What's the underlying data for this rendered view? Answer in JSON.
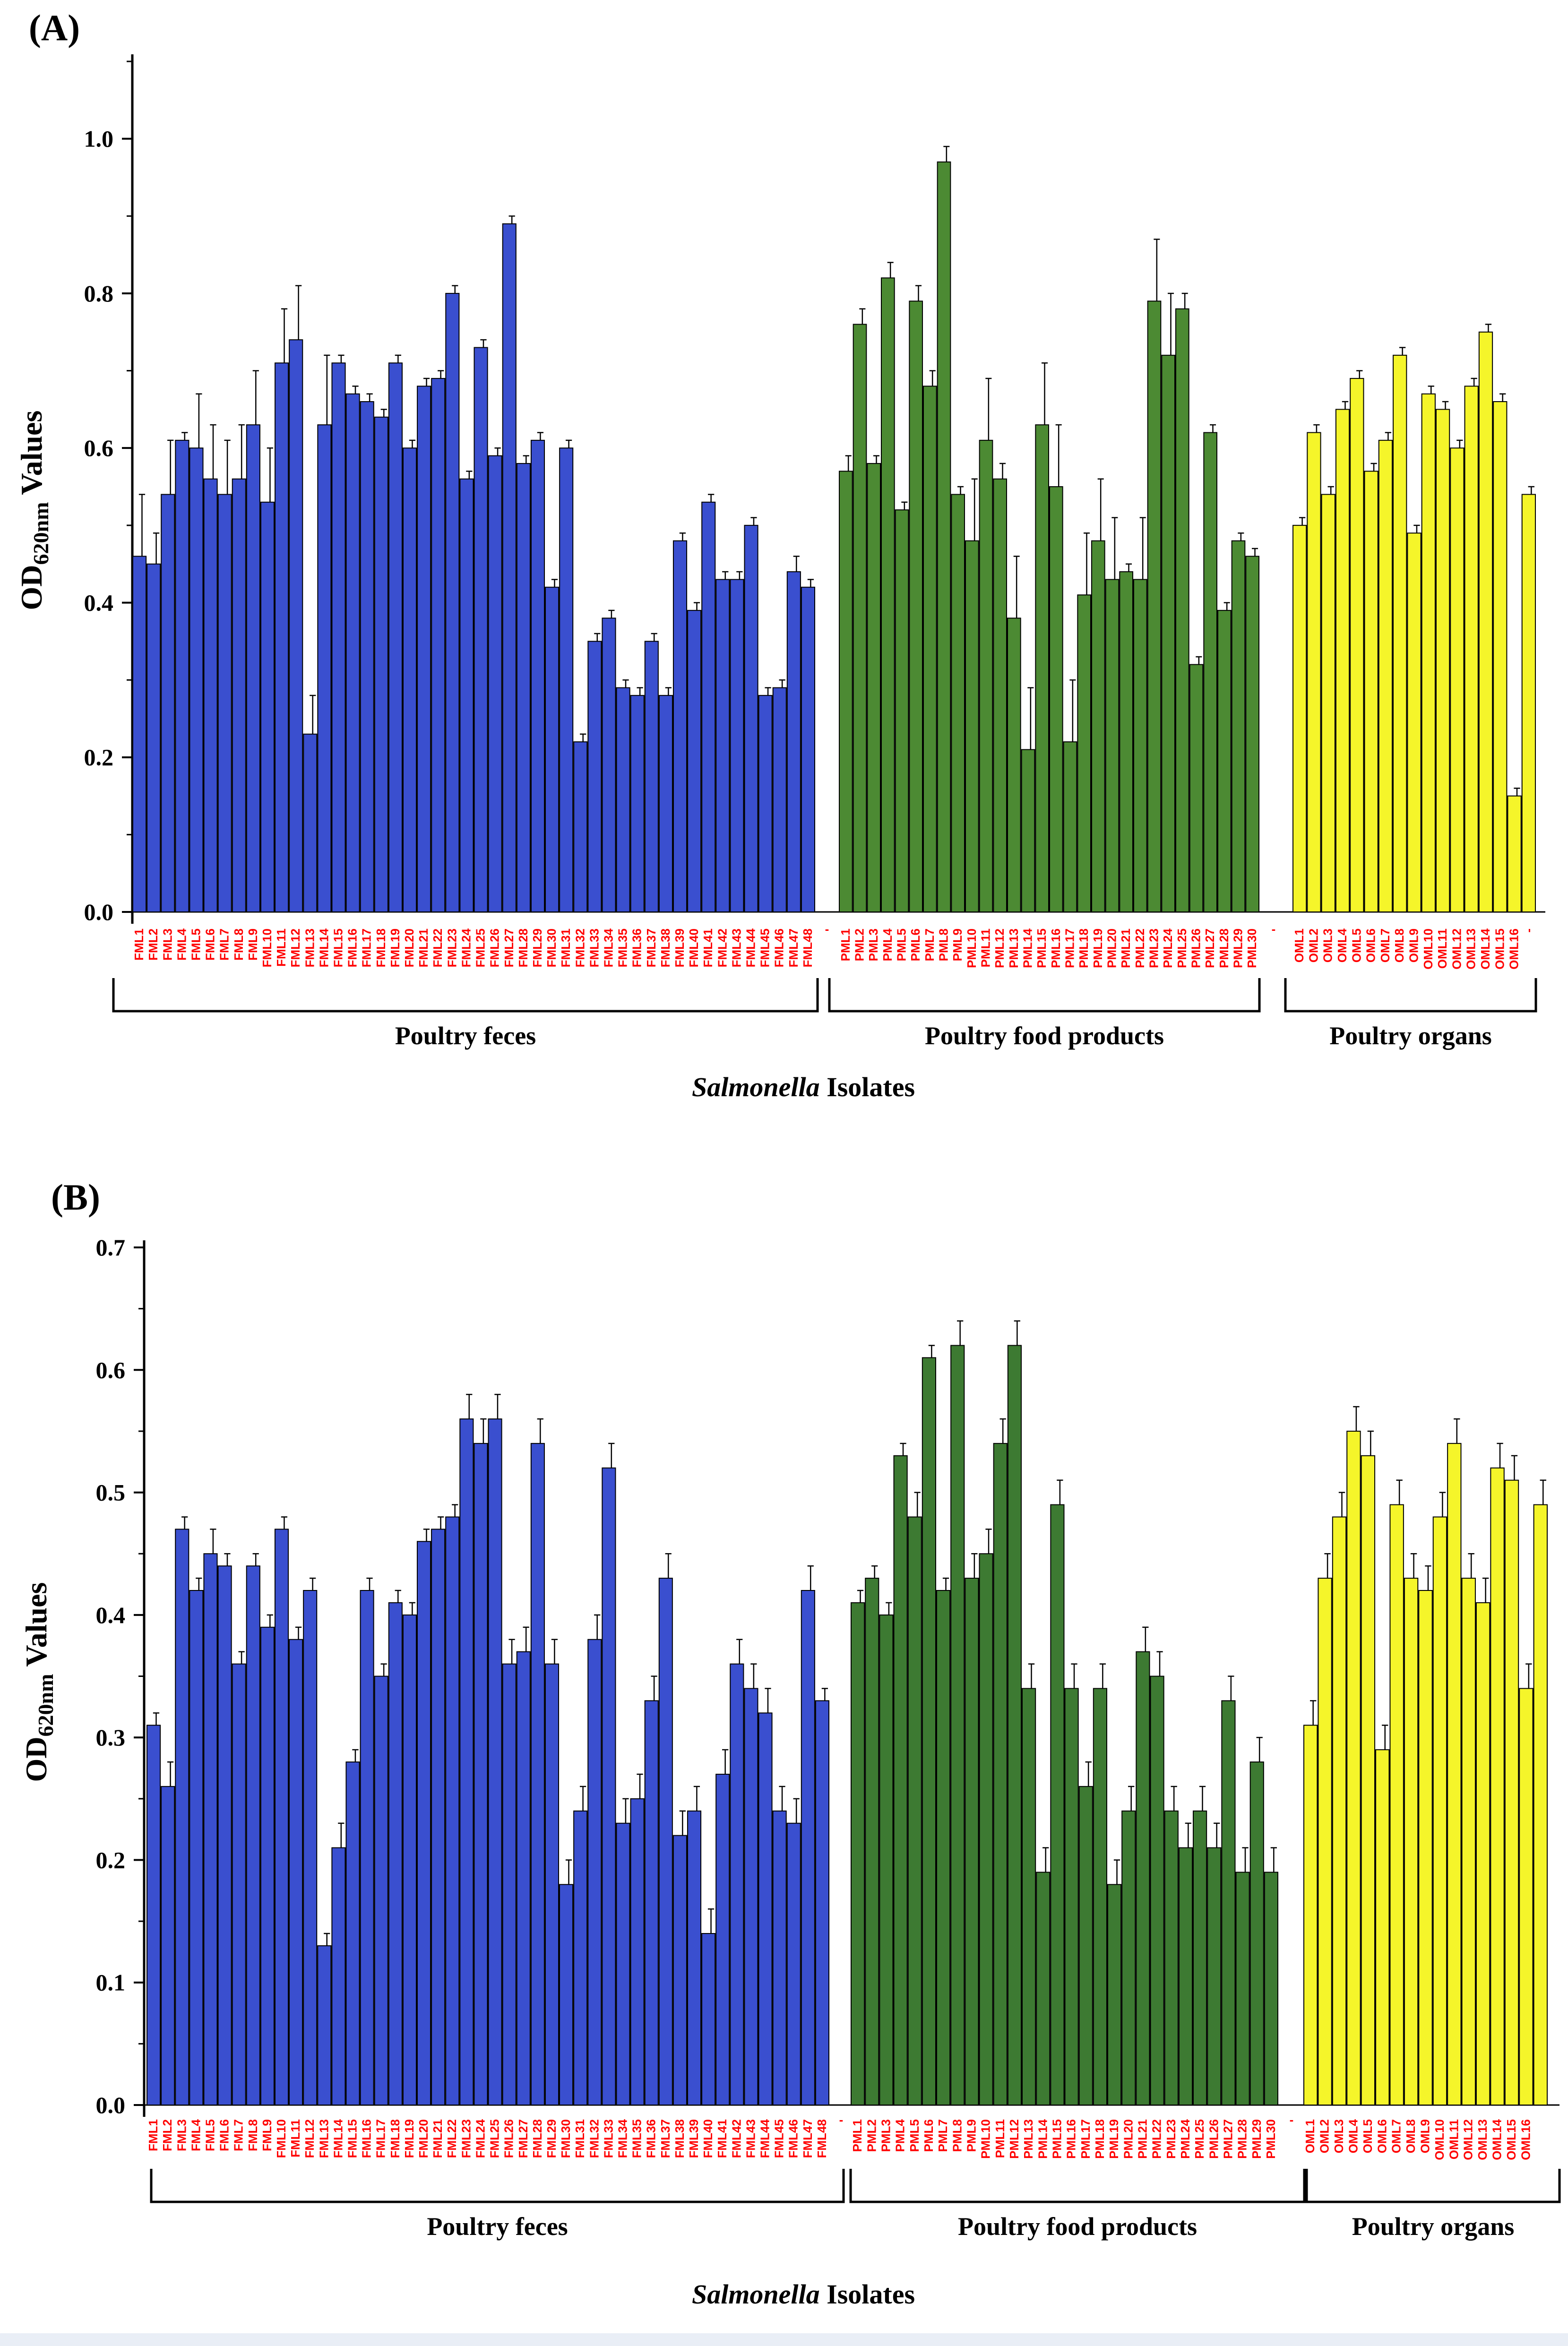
{
  "chart_data": [
    {
      "type": "bar",
      "panel_label": "(A)",
      "ylabel": {
        "main": "OD",
        "sub": "620nm",
        "suffix": " Values"
      },
      "xlabel": {
        "italic": "Salmonella",
        "rest": " Isolates"
      },
      "ylim": [
        0,
        1.1
      ],
      "yticks": [
        0.0,
        0.2,
        0.4,
        0.6,
        0.8,
        1.0
      ],
      "ytick_labels": [
        "0.0",
        "0.2",
        "0.4",
        "0.6",
        "0.8",
        "1.0"
      ],
      "separator_tick_label": "-",
      "groups": [
        {
          "name": "Poultry feces",
          "color": "#3a4fcf",
          "categories": [
            "FML1",
            "FML2",
            "FML3",
            "FML4",
            "FML5",
            "FML6",
            "FML7",
            "FML8",
            "FML9",
            "FML10",
            "FML11",
            "FML12",
            "FML13",
            "FML14",
            "FML15",
            "FML16",
            "FML17",
            "FML18",
            "FML19",
            "FML20",
            "FML21",
            "FML22",
            "FML23",
            "FML24",
            "FML25",
            "FML26",
            "FML27",
            "FML28",
            "FML29",
            "FML30",
            "FML31",
            "FML32",
            "FML33",
            "FML34",
            "FML35",
            "FML36",
            "FML37",
            "FML38",
            "FML39",
            "FML40",
            "FML41",
            "FML42",
            "FML43",
            "FML44",
            "FML45",
            "FML46",
            "FML47",
            "FML48"
          ],
          "values": [
            0.46,
            0.45,
            0.54,
            0.61,
            0.6,
            0.56,
            0.54,
            0.56,
            0.63,
            0.53,
            0.71,
            0.74,
            0.23,
            0.63,
            0.71,
            0.67,
            0.66,
            0.64,
            0.71,
            0.6,
            0.68,
            0.69,
            0.8,
            0.56,
            0.73,
            0.59,
            0.89,
            0.58,
            0.61,
            0.42,
            0.6,
            0.22,
            0.35,
            0.38,
            0.29,
            0.28,
            0.35,
            0.28,
            0.48,
            0.39,
            0.53,
            0.43,
            0.43,
            0.5,
            0.28,
            0.29,
            0.44,
            0.42
          ],
          "errors": [
            0.08,
            0.04,
            0.07,
            0.01,
            0.07,
            0.07,
            0.07,
            0.07,
            0.07,
            0.07,
            0.07,
            0.07,
            0.05,
            0.09,
            0.01,
            0.01,
            0.01,
            0.01,
            0.01,
            0.01,
            0.01,
            0.01,
            0.01,
            0.01,
            0.01,
            0.01,
            0.01,
            0.01,
            0.01,
            0.01,
            0.01,
            0.01,
            0.01,
            0.01,
            0.01,
            0.01,
            0.01,
            0.01,
            0.01,
            0.01,
            0.01,
            0.01,
            0.01,
            0.01,
            0.01,
            0.01,
            0.02,
            0.01
          ]
        },
        {
          "name": "Poultry food products",
          "color": "#4c8a33",
          "categories": [
            "PML1",
            "PML2",
            "PML3",
            "PML4",
            "PML5",
            "PML6",
            "PML7",
            "PML8",
            "PML9",
            "PML10",
            "PML11",
            "PML12",
            "PML13",
            "PML14",
            "PML15",
            "PML16",
            "PML17",
            "PML18",
            "PML19",
            "PML20",
            "PML21",
            "PML22",
            "PML23",
            "PML24",
            "PML25",
            "PML26",
            "PML27",
            "PML28",
            "PML29",
            "PML30"
          ],
          "values": [
            0.57,
            0.76,
            0.58,
            0.82,
            0.52,
            0.79,
            0.68,
            0.97,
            0.54,
            0.48,
            0.61,
            0.56,
            0.38,
            0.21,
            0.63,
            0.55,
            0.22,
            0.41,
            0.48,
            0.43,
            0.44,
            0.43,
            0.79,
            0.72,
            0.78,
            0.32,
            0.62,
            0.39,
            0.48,
            0.46
          ],
          "errors": [
            0.02,
            0.02,
            0.01,
            0.02,
            0.01,
            0.02,
            0.02,
            0.02,
            0.01,
            0.08,
            0.08,
            0.02,
            0.08,
            0.08,
            0.08,
            0.08,
            0.08,
            0.08,
            0.08,
            0.08,
            0.01,
            0.08,
            0.08,
            0.08,
            0.02,
            0.01,
            0.01,
            0.01,
            0.01,
            0.01
          ]
        },
        {
          "name": "Poultry organs",
          "color": "#f5f52a",
          "categories": [
            "OML1",
            "OML2",
            "OML3",
            "OML4",
            "OML5",
            "OML6",
            "OML7",
            "OML8",
            "OML9",
            "OML10",
            "OML11",
            "OML12",
            "OML13",
            "OML14",
            "OML15",
            "OML16"
          ],
          "values": [
            0.5,
            0.62,
            0.54,
            0.65,
            0.69,
            0.57,
            0.61,
            0.72,
            0.49,
            0.67,
            0.65,
            0.6,
            0.68,
            0.75,
            0.66,
            0.15
          ],
          "errors": [
            0.01,
            0.01,
            0.01,
            0.01,
            0.01,
            0.01,
            0.01,
            0.01,
            0.01,
            0.01,
            0.01,
            0.01,
            0.01,
            0.01,
            0.01,
            0.01
          ],
          "extra_bar": {
            "category": "-",
            "value": 0.54,
            "error": 0.01
          }
        }
      ]
    },
    {
      "type": "bar",
      "panel_label": "(B)",
      "ylabel": {
        "main": "OD",
        "sub": "620nm",
        "suffix": " Values"
      },
      "xlabel": {
        "italic": "Salmonella",
        "rest": " Isolates"
      },
      "ylim": [
        0,
        0.7
      ],
      "yticks": [
        0.0,
        0.1,
        0.2,
        0.3,
        0.4,
        0.5,
        0.6,
        0.7
      ],
      "ytick_labels": [
        "0.0",
        "0.1",
        "0.2",
        "0.3",
        "0.4",
        "0.5",
        "0.6",
        "0.7"
      ],
      "separator_tick_label": "-",
      "groups": [
        {
          "name": "Poultry feces",
          "color": "#3a4fcf",
          "categories": [
            "FML1",
            "FML2",
            "FML3",
            "FML4",
            "FML5",
            "FML6",
            "FML7",
            "FML8",
            "FML9",
            "FML10",
            "FML11",
            "FML12",
            "FML13",
            "FML14",
            "FML15",
            "FML16",
            "FML17",
            "FML18",
            "FML19",
            "FML20",
            "FML21",
            "FML22",
            "FML23",
            "FML24",
            "FML25",
            "FML26",
            "FML27",
            "FML28",
            "FML29",
            "FML30",
            "FML31",
            "FML32",
            "FML33",
            "FML34",
            "FML35",
            "FML36",
            "FML37",
            "FML38",
            "FML39",
            "FML40",
            "FML41",
            "FML42",
            "FML43",
            "FML44",
            "FML45",
            "FML46",
            "FML47",
            "FML48"
          ],
          "values": [
            0.31,
            0.26,
            0.47,
            0.42,
            0.45,
            0.44,
            0.36,
            0.44,
            0.39,
            0.47,
            0.38,
            0.42,
            0.13,
            0.21,
            0.28,
            0.42,
            0.35,
            0.41,
            0.4,
            0.46,
            0.47,
            0.48,
            0.56,
            0.54,
            0.56,
            0.36,
            0.37,
            0.54,
            0.36,
            0.18,
            0.24,
            0.38,
            0.52,
            0.23,
            0.25,
            0.33,
            0.43,
            0.22,
            0.24,
            0.14,
            0.27,
            0.36,
            0.34,
            0.32,
            0.24,
            0.23,
            0.42,
            0.33
          ],
          "errors": [
            0.01,
            0.02,
            0.01,
            0.01,
            0.02,
            0.01,
            0.01,
            0.01,
            0.01,
            0.01,
            0.01,
            0.01,
            0.01,
            0.02,
            0.01,
            0.01,
            0.01,
            0.01,
            0.01,
            0.01,
            0.01,
            0.01,
            0.02,
            0.02,
            0.02,
            0.02,
            0.02,
            0.02,
            0.02,
            0.02,
            0.02,
            0.02,
            0.02,
            0.02,
            0.02,
            0.02,
            0.02,
            0.02,
            0.02,
            0.02,
            0.02,
            0.02,
            0.02,
            0.02,
            0.02,
            0.02,
            0.02,
            0.01
          ]
        },
        {
          "name": "Poultry food products",
          "color": "#3d7a32",
          "categories": [
            "PML1",
            "PML2",
            "PML3",
            "PML4",
            "PML5",
            "PML6",
            "PML7",
            "PML8",
            "PML9",
            "PML10",
            "PML11",
            "PML12",
            "PML13",
            "PML14",
            "PML15",
            "PML16",
            "PML17",
            "PML18",
            "PML19",
            "PML20",
            "PML21",
            "PML22",
            "PML23",
            "PML24",
            "PML25",
            "PML26",
            "PML27",
            "PML28",
            "PML29",
            "PML30"
          ],
          "values": [
            0.41,
            0.43,
            0.4,
            0.53,
            0.48,
            0.61,
            0.42,
            0.62,
            0.43,
            0.45,
            0.54,
            0.62,
            0.34,
            0.19,
            0.49,
            0.34,
            0.26,
            0.34,
            0.18,
            0.24,
            0.37,
            0.35,
            0.24,
            0.21,
            0.24,
            0.21,
            0.33,
            0.19,
            0.28,
            0.19
          ],
          "errors": [
            0.01,
            0.01,
            0.01,
            0.01,
            0.02,
            0.01,
            0.01,
            0.02,
            0.02,
            0.02,
            0.02,
            0.02,
            0.02,
            0.02,
            0.02,
            0.02,
            0.02,
            0.02,
            0.02,
            0.02,
            0.02,
            0.02,
            0.02,
            0.02,
            0.02,
            0.02,
            0.02,
            0.02,
            0.02,
            0.02
          ]
        },
        {
          "name": "Poultry organs",
          "color": "#f5f52a",
          "categories": [
            "OML1",
            "OML2",
            "OML3",
            "OML4",
            "OML5",
            "OML6",
            "OML7",
            "OML8",
            "OML9",
            "OML10",
            "OML11",
            "OML12",
            "OML13",
            "OML14",
            "OML15",
            "OML16"
          ],
          "values": [
            0.31,
            0.43,
            0.48,
            0.55,
            0.53,
            0.29,
            0.49,
            0.43,
            0.42,
            0.48,
            0.54,
            0.43,
            0.41,
            0.52,
            0.51,
            0.34
          ],
          "errors": [
            0.02,
            0.02,
            0.02,
            0.02,
            0.02,
            0.02,
            0.02,
            0.02,
            0.02,
            0.02,
            0.02,
            0.02,
            0.02,
            0.02,
            0.02,
            0.02
          ],
          "leading_tick_label": "-",
          "extra_bar": {
            "category": "",
            "value": 0.49,
            "error": 0.02
          }
        }
      ]
    }
  ]
}
